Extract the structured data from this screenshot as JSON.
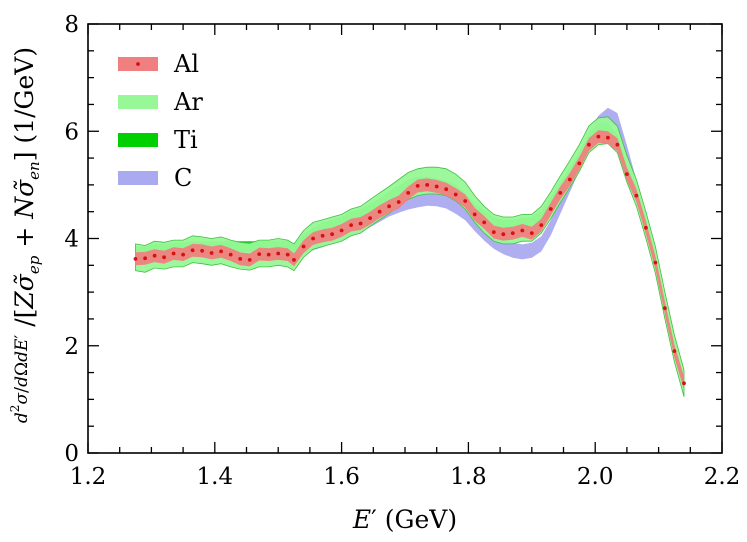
{
  "chart_data": {
    "type": "area",
    "xlabel": "E′ (GeV)",
    "ylabel": "d²σ/dΩdE′ / [Zσ̃ep + Nσ̃en] (1/GeV)",
    "xlim": [
      1.2,
      2.2
    ],
    "ylim": [
      0,
      8
    ],
    "x_ticks": [
      "1.2",
      "1.4",
      "1.6",
      "1.8",
      "2.0",
      "2.2"
    ],
    "y_ticks": [
      "0",
      "2",
      "4",
      "6",
      "8"
    ],
    "grid": false,
    "legend_position": "top-left",
    "series": [
      {
        "name": "Al",
        "color": "#f08080",
        "marker_color": "#d81010",
        "x": [
          1.275,
          1.29,
          1.305,
          1.32,
          1.335,
          1.35,
          1.365,
          1.38,
          1.395,
          1.41,
          1.425,
          1.44,
          1.455,
          1.47,
          1.485,
          1.5,
          1.515,
          1.525,
          1.54,
          1.555,
          1.57,
          1.585,
          1.6,
          1.615,
          1.63,
          1.645,
          1.66,
          1.675,
          1.69,
          1.705,
          1.72,
          1.735,
          1.75,
          1.765,
          1.78,
          1.795,
          1.81,
          1.825,
          1.84,
          1.855,
          1.87,
          1.885,
          1.9,
          1.915,
          1.93,
          1.945,
          1.96,
          1.975,
          1.99,
          2.005,
          2.02,
          2.035,
          2.05,
          2.065,
          2.08,
          2.095,
          2.11,
          2.125,
          2.14
        ],
        "values": [
          3.62,
          3.63,
          3.68,
          3.65,
          3.72,
          3.7,
          3.78,
          3.77,
          3.73,
          3.76,
          3.7,
          3.62,
          3.6,
          3.71,
          3.7,
          3.72,
          3.7,
          3.6,
          3.85,
          4.0,
          4.05,
          4.08,
          4.15,
          4.25,
          4.28,
          4.38,
          4.5,
          4.6,
          4.68,
          4.85,
          4.98,
          5.0,
          4.97,
          4.92,
          4.82,
          4.7,
          4.45,
          4.3,
          4.12,
          4.08,
          4.1,
          4.15,
          4.1,
          4.25,
          4.55,
          4.85,
          5.1,
          5.4,
          5.75,
          5.9,
          5.88,
          5.75,
          5.2,
          4.8,
          4.2,
          3.55,
          2.7,
          1.9,
          1.3
        ],
        "band": 0.12
      },
      {
        "name": "Ar",
        "color": "#98f898",
        "x": [
          1.275,
          1.29,
          1.305,
          1.32,
          1.335,
          1.35,
          1.365,
          1.38,
          1.395,
          1.41,
          1.425,
          1.44,
          1.455,
          1.47,
          1.485,
          1.5,
          1.515,
          1.525,
          1.54,
          1.555,
          1.57,
          1.585,
          1.6,
          1.615,
          1.63,
          1.645,
          1.66,
          1.675,
          1.69,
          1.705,
          1.72,
          1.735,
          1.75,
          1.765,
          1.78,
          1.795,
          1.81,
          1.825,
          1.84,
          1.855,
          1.87,
          1.885,
          1.9,
          1.915,
          1.93,
          1.945,
          1.96,
          1.975,
          1.99,
          2.005,
          2.02,
          2.035,
          2.05,
          2.065,
          2.08,
          2.095,
          2.11,
          2.125,
          2.14
        ],
        "values": [
          3.65,
          3.62,
          3.7,
          3.68,
          3.72,
          3.72,
          3.8,
          3.78,
          3.75,
          3.78,
          3.72,
          3.68,
          3.66,
          3.72,
          3.72,
          3.75,
          3.72,
          3.65,
          3.9,
          4.05,
          4.1,
          4.15,
          4.2,
          4.3,
          4.35,
          4.48,
          4.6,
          4.72,
          4.85,
          4.98,
          5.05,
          5.08,
          5.08,
          5.05,
          4.95,
          4.8,
          4.55,
          4.35,
          4.2,
          4.15,
          4.15,
          4.2,
          4.2,
          4.35,
          4.62,
          4.92,
          5.2,
          5.5,
          5.85,
          6.0,
          6.02,
          5.85,
          5.3,
          4.85,
          4.25,
          3.6,
          2.75,
          1.95,
          1.3
        ],
        "band": 0.25
      },
      {
        "name": "Ti",
        "color": "#00d000",
        "x": [
          1.275,
          1.29,
          1.305,
          1.32,
          1.335,
          1.35,
          1.365,
          1.38,
          1.395,
          1.41,
          1.425,
          1.44,
          1.455,
          1.47,
          1.485,
          1.5,
          1.515,
          1.525,
          1.54,
          1.555,
          1.57,
          1.585,
          1.6,
          1.615,
          1.63,
          1.645,
          1.66,
          1.675,
          1.69,
          1.705,
          1.72,
          1.735,
          1.75,
          1.765,
          1.78,
          1.795,
          1.81,
          1.825,
          1.84,
          1.855,
          1.87,
          1.885,
          1.9,
          1.915,
          1.93,
          1.945,
          1.96,
          1.975,
          1.99,
          2.005,
          2.02,
          2.035,
          2.05,
          2.065,
          2.08,
          2.095,
          2.11,
          2.125,
          2.14
        ],
        "values": [
          3.75,
          3.75,
          3.8,
          3.8,
          3.82,
          3.83,
          3.85,
          3.85,
          3.85,
          3.85,
          3.85,
          3.85,
          3.85,
          3.85,
          3.85,
          3.86,
          3.86,
          3.8,
          3.98,
          4.1,
          4.2,
          4.25,
          4.3,
          4.4,
          4.45,
          4.55,
          4.65,
          4.78,
          4.88,
          5.0,
          5.05,
          5.05,
          5.02,
          4.98,
          4.9,
          4.75,
          4.55,
          4.42,
          4.3,
          4.25,
          4.25,
          4.28,
          4.3,
          4.42,
          4.68,
          4.95,
          5.22,
          5.52,
          5.85,
          6.05,
          6.05,
          5.85,
          5.3,
          4.85,
          4.25,
          3.6,
          2.75,
          1.95,
          1.3
        ],
        "band": 0.1
      },
      {
        "name": "C",
        "color": "#aaaaf0",
        "x": [
          1.525,
          1.54,
          1.555,
          1.57,
          1.585,
          1.6,
          1.615,
          1.63,
          1.645,
          1.66,
          1.675,
          1.69,
          1.705,
          1.72,
          1.735,
          1.75,
          1.765,
          1.78,
          1.795,
          1.81,
          1.825,
          1.84,
          1.855,
          1.87,
          1.885,
          1.9,
          1.915,
          1.93,
          1.945,
          1.96,
          1.975,
          1.99,
          2.005,
          2.02,
          2.035,
          2.05,
          2.065,
          2.08,
          2.095,
          2.11,
          2.125,
          2.14
        ],
        "values": [
          3.7,
          3.85,
          3.92,
          3.98,
          4.05,
          4.1,
          4.18,
          4.25,
          4.35,
          4.45,
          4.55,
          4.62,
          4.68,
          4.72,
          4.75,
          4.74,
          4.7,
          4.6,
          4.48,
          4.28,
          4.1,
          3.95,
          3.85,
          3.78,
          3.75,
          3.78,
          3.9,
          4.2,
          4.6,
          5.0,
          5.4,
          5.85,
          6.15,
          6.3,
          6.2,
          5.6,
          4.95,
          4.25,
          3.55,
          2.7,
          1.9,
          1.3
        ],
        "band": 0.14
      }
    ]
  }
}
